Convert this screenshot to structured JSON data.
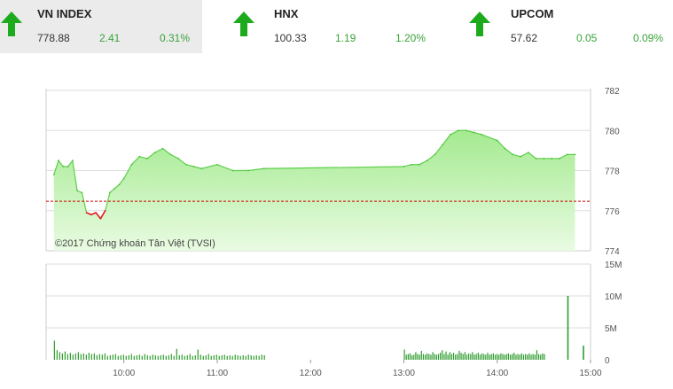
{
  "indices": [
    {
      "name": "VN INDEX",
      "value": "778.88",
      "change": "2.41",
      "percent": "0.31%",
      "direction": "up",
      "active": true
    },
    {
      "name": "HNX",
      "value": "100.33",
      "change": "1.19",
      "percent": "1.20%",
      "direction": "up",
      "active": false
    },
    {
      "name": "UPCOM",
      "value": "57.62",
      "change": "0.05",
      "percent": "0.09%",
      "direction": "up",
      "active": false
    }
  ],
  "colors": {
    "up": "#1dab1d",
    "down": "#e01e1e",
    "fill_top": "#a4ea90",
    "fill_bottom": "#e9fbe2",
    "reference_line": "#cc0000",
    "volume": "#2e9c2e"
  },
  "chart_data": [
    {
      "type": "area",
      "watermark": "©2017 Chứng khoán Tân Việt (TVSI)",
      "y_ticks": [
        "774",
        "776",
        "778",
        "780",
        "782"
      ],
      "ylim": [
        774,
        782
      ],
      "reference_value": 776.47,
      "grid": true,
      "x": [
        "09:15",
        "09:18",
        "09:21",
        "09:24",
        "09:27",
        "09:30",
        "09:33",
        "09:36",
        "09:39",
        "09:42",
        "09:45",
        "09:48",
        "09:51",
        "09:54",
        "09:57",
        "10:00",
        "10:05",
        "10:10",
        "10:15",
        "10:20",
        "10:25",
        "10:30",
        "10:35",
        "10:40",
        "10:45",
        "10:50",
        "11:00",
        "11:10",
        "11:20",
        "11:30",
        "13:00",
        "13:05",
        "13:10",
        "13:15",
        "13:20",
        "13:25",
        "13:30",
        "13:35",
        "13:40",
        "13:45",
        "13:50",
        "14:00",
        "14:05",
        "14:10",
        "14:15",
        "14:20",
        "14:25",
        "14:30",
        "14:35",
        "14:40",
        "14:45",
        "14:50"
      ],
      "series": [
        {
          "values": [
            777.8,
            778.5,
            778.2,
            778.2,
            778.5,
            777.0,
            776.9,
            775.9,
            775.8,
            775.9,
            775.6,
            776.0,
            776.9,
            777.1,
            777.3,
            777.6,
            778.3,
            778.7,
            778.6,
            778.9,
            779.1,
            778.8,
            778.6,
            778.3,
            778.2,
            778.1,
            778.3,
            778.0,
            778.0,
            778.1,
            778.2,
            778.3,
            778.3,
            778.5,
            778.8,
            779.3,
            779.8,
            780.0,
            780.0,
            779.9,
            779.8,
            779.5,
            779.1,
            778.8,
            778.7,
            778.9,
            778.6,
            778.6,
            778.6,
            778.6,
            778.8,
            778.8
          ]
        }
      ]
    },
    {
      "type": "bar",
      "y_ticks": [
        "0",
        "5M",
        "10M",
        "15M"
      ],
      "ylim": [
        0,
        15
      ],
      "x_ticks": [
        "10:00",
        "11:00",
        "12:00",
        "13:00",
        "14:00",
        "15:00"
      ],
      "xlim": [
        "09:10",
        "15:00"
      ],
      "volume_morning": [
        3.0,
        1.5,
        1.2,
        1.0,
        1.3,
        0.9,
        1.1,
        0.8,
        1.0,
        1.2,
        0.9,
        1.0,
        0.8,
        1.1,
        0.9,
        1.0,
        0.7,
        0.9,
        0.8,
        1.0,
        0.6,
        0.7,
        0.8,
        0.9,
        0.6,
        0.7,
        0.8,
        0.6,
        0.7,
        0.9,
        0.6,
        0.7,
        0.8,
        0.6,
        0.9,
        0.7,
        0.6,
        0.8,
        0.7,
        0.6,
        0.7,
        0.8,
        0.6,
        0.7,
        0.9,
        0.6,
        1.7,
        0.7,
        0.8,
        0.6,
        0.7,
        0.9,
        0.6,
        0.7,
        1.6,
        0.8,
        0.6,
        0.7,
        0.9,
        0.6,
        0.7,
        0.8,
        0.6,
        0.7,
        0.8,
        0.6,
        0.7,
        0.6,
        0.8,
        0.7,
        0.6,
        0.7,
        0.6,
        0.8,
        0.7,
        0.6,
        0.7,
        0.6,
        0.8,
        0.7
      ],
      "volume_afternoon": [
        1.6,
        0.8,
        0.9,
        1.0,
        0.7,
        0.8,
        1.2,
        0.9,
        0.8,
        1.4,
        0.9,
        0.8,
        1.0,
        0.9,
        0.8,
        1.2,
        0.9,
        0.8,
        0.9,
        1.1,
        1.5,
        0.9,
        1.3,
        0.8,
        1.2,
        0.9,
        1.1,
        0.8,
        0.9,
        1.4,
        1.1,
        0.9,
        1.2,
        0.8,
        1.0,
        0.9,
        1.2,
        0.8,
        0.9,
        1.1,
        0.8,
        1.0,
        0.9,
        0.8,
        1.1,
        0.8,
        0.9,
        1.0,
        0.8,
        0.9,
        0.8,
        1.0,
        0.9,
        0.8,
        0.9,
        1.0,
        0.8,
        0.9,
        1.1,
        0.8,
        0.9,
        0.8,
        1.0,
        0.8,
        0.9,
        0.8,
        1.0,
        0.8,
        0.9,
        0.8,
        1.5,
        0.9,
        0.8,
        1.0,
        0.9
      ],
      "volume_close": [
        10.0,
        2.2
      ]
    }
  ]
}
